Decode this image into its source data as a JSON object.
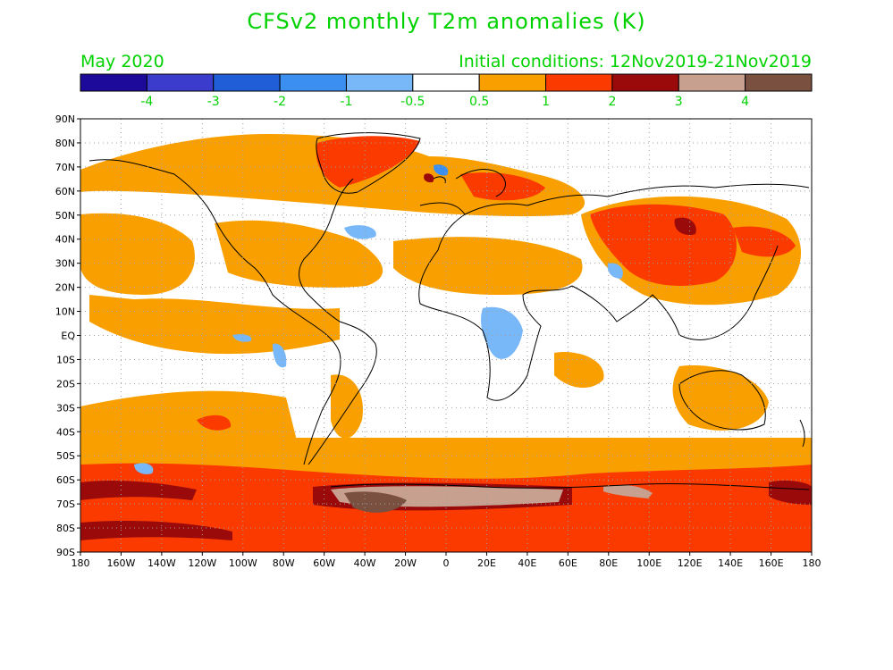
{
  "header": {
    "title": "CFSv2 monthly T2m anomalies (K)",
    "valid_month": "May 2020",
    "initial_conditions": "Initial conditions: 12Nov2019-21Nov2019"
  },
  "colorbar": {
    "colors": [
      "#1e0a9a",
      "#3c3ccc",
      "#1f5ed6",
      "#3a8ff0",
      "#78b8f8",
      "#ffffff",
      "#f9a000",
      "#fb3a00",
      "#9a0a0a",
      "#c8a090",
      "#7a5040"
    ],
    "labels": [
      "-4",
      "-3",
      "-2",
      "-1",
      "-0.5",
      "0.5",
      "1",
      "2",
      "3",
      "4"
    ]
  },
  "map": {
    "lat_labels": [
      "90N",
      "80N",
      "70N",
      "60N",
      "50N",
      "40N",
      "30N",
      "20N",
      "10N",
      "EQ",
      "10S",
      "20S",
      "30S",
      "40S",
      "50S",
      "60S",
      "70S",
      "80S",
      "90S"
    ],
    "lon_labels": [
      "180",
      "160W",
      "140W",
      "120W",
      "100W",
      "80W",
      "60W",
      "40W",
      "20W",
      "0",
      "20E",
      "40E",
      "60E",
      "80E",
      "100E",
      "120E",
      "140E",
      "160E",
      "180"
    ],
    "colors": {
      "orange": "#f9a000",
      "red": "#fb3a00",
      "darkred": "#9a0a0a",
      "tan": "#c8a090",
      "brown": "#7a5040",
      "lightblue": "#78b8f8",
      "grid": "#a0a0a0",
      "coast": "#000000"
    }
  }
}
